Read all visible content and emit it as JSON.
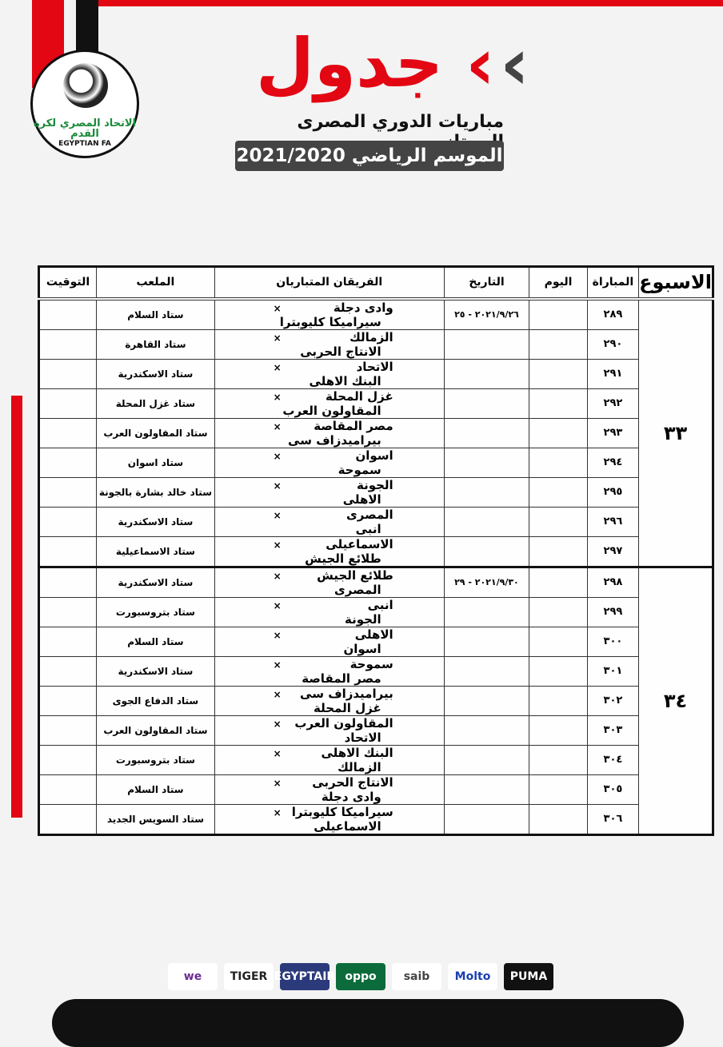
{
  "header": {
    "title": "جدول",
    "subtitle": "مباريات الدوري المصرى الممتاز",
    "season": "الموسم الرياضي 2021/2020"
  },
  "logo": {
    "arabic": "الاتحاد المصري لكرة القدم",
    "english": "EGYPTIAN FA"
  },
  "colors": {
    "accent": "#e30613",
    "dark": "#444444"
  },
  "table": {
    "headers": {
      "week": "الاسبوع",
      "match": "المباراة",
      "day": "اليوم",
      "date": "التاريخ",
      "teams": "الفريقان المتباريان",
      "stadium": "الملعب",
      "time": "التوقيت"
    },
    "vs": "×",
    "weeks": [
      {
        "week": "٣٣",
        "date": "٢٠٢١/٩/٢٦ - ٢٥",
        "matches": [
          {
            "num": "٢٨٩",
            "home": "وادى دجلة",
            "away": "سيراميكا كليوبترا",
            "stadium": "ستاد السلام"
          },
          {
            "num": "٢٩٠",
            "home": "الزمالك",
            "away": "الانتاج الحربى",
            "stadium": "ستاد القاهرة"
          },
          {
            "num": "٢٩١",
            "home": "الاتحاد",
            "away": "البنك الاهلى",
            "stadium": "ستاد الاسكندرية"
          },
          {
            "num": "٢٩٢",
            "home": "غزل المحلة",
            "away": "المقاولون العرب",
            "stadium": "ستاد غزل المحلة"
          },
          {
            "num": "٢٩٣",
            "home": "مصر المقاصة",
            "away": "بيراميدزاف سى",
            "stadium": "ستاد المقاولون العرب"
          },
          {
            "num": "٢٩٤",
            "home": "اسوان",
            "away": "سموحة",
            "stadium": "ستاد اسوان"
          },
          {
            "num": "٢٩٥",
            "home": "الجونة",
            "away": "الاهلى",
            "stadium": "ستاد خالد بشارة بالجونة"
          },
          {
            "num": "٢٩٦",
            "home": "المصرى",
            "away": "انبى",
            "stadium": "ستاد الاسكندرية"
          },
          {
            "num": "٢٩٧",
            "home": "الاسماعيلى",
            "away": "طلائع الجيش",
            "stadium": "ستاد الاسماعيلية"
          }
        ]
      },
      {
        "week": "٣٤",
        "date": "٢٠٢١/٩/٣٠ - ٢٩",
        "matches": [
          {
            "num": "٢٩٨",
            "home": "طلائع الجيش",
            "away": "المصرى",
            "stadium": "ستاد الاسكندرية"
          },
          {
            "num": "٢٩٩",
            "home": "انبى",
            "away": "الجونة",
            "stadium": "ستاد بتروسبورت"
          },
          {
            "num": "٣٠٠",
            "home": "الاهلى",
            "away": "اسوان",
            "stadium": "ستاد السلام"
          },
          {
            "num": "٣٠١",
            "home": "سموحة",
            "away": "مصر المقاصة",
            "stadium": "ستاد الاسكندرية"
          },
          {
            "num": "٣٠٢",
            "home": "بيراميدزاف سى",
            "away": "غزل المحلة",
            "stadium": "ستاد الدفاع الجوى"
          },
          {
            "num": "٣٠٣",
            "home": "المقاولون العرب",
            "away": "الاتحاد",
            "stadium": "ستاد المقاولون العرب"
          },
          {
            "num": "٣٠٤",
            "home": "البنك الاهلى",
            "away": "الزمالك",
            "stadium": "ستاد بتروسبورت"
          },
          {
            "num": "٣٠٥",
            "home": "الانتاج الحربى",
            "away": "وادى دجلة",
            "stadium": "ستاد السلام"
          },
          {
            "num": "٣٠٦",
            "home": "سيراميكا كليوبترا",
            "away": "الاسماعيلى",
            "stadium": "ستاد السويس الجديد"
          }
        ]
      }
    ]
  },
  "sponsors": [
    {
      "name": "we",
      "bg": "#ffffff",
      "fg": "#6b2c91"
    },
    {
      "name": "TIGER",
      "bg": "#ffffff",
      "fg": "#222222"
    },
    {
      "name": "EGYPTAIR",
      "bg": "#2b3a7a",
      "fg": "#ffffff"
    },
    {
      "name": "oppo",
      "bg": "#0b6b3a",
      "fg": "#ffffff"
    },
    {
      "name": "saib",
      "bg": "#ffffff",
      "fg": "#444444"
    },
    {
      "name": "Molto",
      "bg": "#ffffff",
      "fg": "#1a3fb0"
    },
    {
      "name": "PUMA",
      "bg": "#111111",
      "fg": "#ffffff"
    }
  ]
}
